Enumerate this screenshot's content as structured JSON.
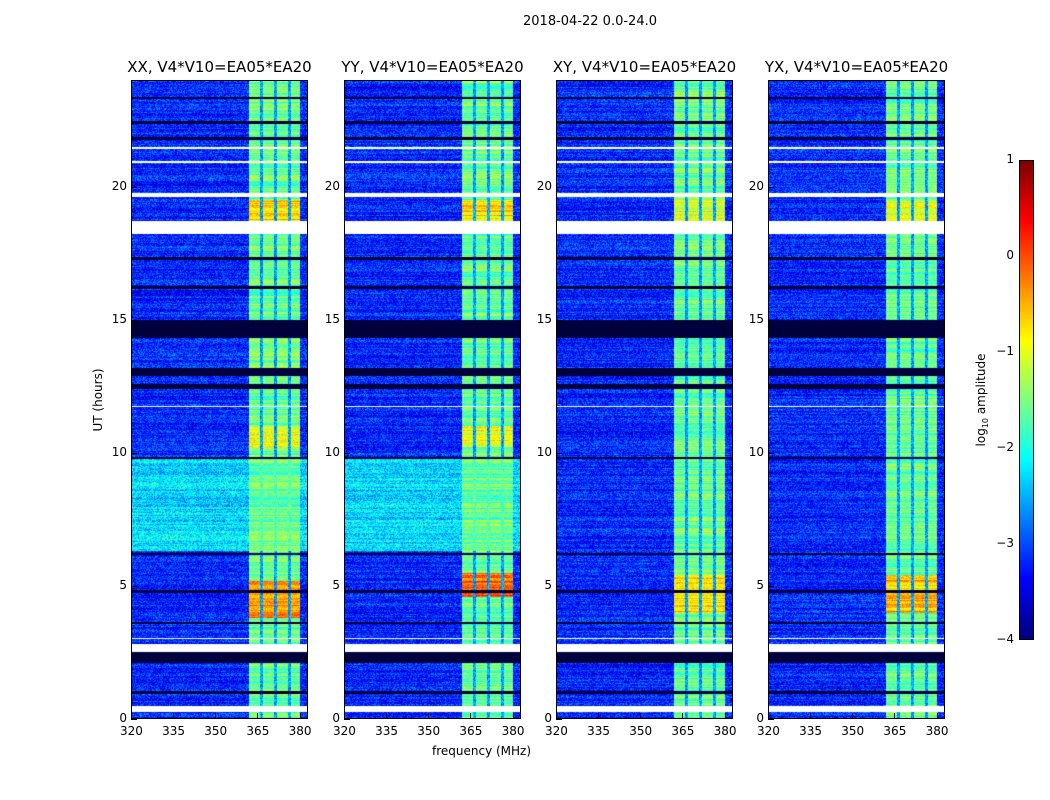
{
  "figure": {
    "suptitle": "2018-04-22 0.0-24.0"
  },
  "chart_data": {
    "type": "heatmap",
    "title": "2018-04-22 0.0-24.0",
    "xlabel": "frequency (MHz)",
    "ylabel": "UT (hours)",
    "xlim": [
      320,
      383
    ],
    "ylim": [
      0,
      24
    ],
    "xticks": [
      320,
      335,
      350,
      365,
      380
    ],
    "yticks": [
      0,
      5,
      10,
      15,
      20
    ],
    "panels": [
      {
        "title": "XX, V4*V10=EA05*EA20",
        "elevated_background": [
          [
            6.3,
            9.8,
            -2.3
          ]
        ],
        "band_boost": [
          [
            3.8,
            5.2,
            1.3
          ],
          [
            10.2,
            11.0,
            0.6
          ],
          [
            18.7,
            19.5,
            0.9
          ]
        ]
      },
      {
        "title": "YY, V4*V10=EA05*EA20",
        "elevated_background": [
          [
            6.3,
            9.8,
            -2.3
          ]
        ],
        "band_boost": [
          [
            4.6,
            5.5,
            1.5
          ],
          [
            10.2,
            11.0,
            0.7
          ],
          [
            18.7,
            19.5,
            0.9
          ]
        ]
      },
      {
        "title": "XY, V4*V10=EA05*EA20",
        "elevated_background": [],
        "band_boost": [
          [
            4.0,
            5.4,
            0.9
          ],
          [
            18.7,
            19.5,
            0.6
          ]
        ]
      },
      {
        "title": "YX, V4*V10=EA05*EA20",
        "elevated_background": [],
        "band_boost": [
          [
            4.0,
            5.4,
            1.0
          ],
          [
            18.7,
            19.5,
            0.6
          ]
        ]
      }
    ],
    "background_log_amplitude": -3.2,
    "rfi_band_log_amplitude": -1.6,
    "rfi_subbands_mhz": [
      [
        362,
        366
      ],
      [
        367,
        371
      ],
      [
        372,
        376
      ],
      [
        377,
        380
      ]
    ],
    "flagged_white_hours": [
      [
        0.25,
        0.5
      ],
      [
        2.5,
        2.8
      ],
      [
        18.2,
        18.7
      ],
      [
        19.6,
        19.75
      ],
      [
        21.4,
        21.5
      ],
      [
        11.7,
        11.75
      ],
      [
        20.9,
        20.95
      ],
      [
        3.0,
        3.05
      ]
    ],
    "no_data_black_hours": [
      [
        0.95,
        1.05
      ],
      [
        2.1,
        2.5
      ],
      [
        3.55,
        3.65
      ],
      [
        4.75,
        4.85
      ],
      [
        6.15,
        6.25
      ],
      [
        9.75,
        9.85
      ],
      [
        12.4,
        12.6
      ],
      [
        12.9,
        13.2
      ],
      [
        14.3,
        15.0
      ],
      [
        16.15,
        16.25
      ],
      [
        17.25,
        17.35
      ],
      [
        21.75,
        21.85
      ],
      [
        22.35,
        22.45
      ],
      [
        23.3,
        23.35
      ]
    ],
    "colorbar": {
      "label_prefix": "log",
      "label_sub": "10",
      "label_suffix": " amplitude",
      "range": [
        -4,
        1
      ],
      "ticks": [
        "1",
        "0",
        "−1",
        "−2",
        "−3",
        "−4"
      ],
      "colormap": "jet"
    }
  }
}
